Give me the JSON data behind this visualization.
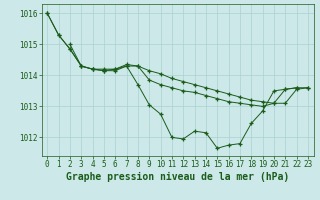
{
  "title": "Graphe pression niveau de la mer (hPa)",
  "background_color": "#cce8e8",
  "grid_color": "#aad0d0",
  "line_color": "#1a5c1a",
  "xlim": [
    -0.5,
    23.5
  ],
  "ylim": [
    1011.4,
    1016.3
  ],
  "yticks": [
    1012,
    1013,
    1014,
    1015,
    1016
  ],
  "xticks": [
    0,
    1,
    2,
    3,
    4,
    5,
    6,
    7,
    8,
    9,
    10,
    11,
    12,
    13,
    14,
    15,
    16,
    17,
    18,
    19,
    20,
    21,
    22,
    23
  ],
  "title_fontsize": 7,
  "tick_fontsize": 5.5,
  "line1": [
    1016.0,
    1015.3,
    1014.85,
    1014.3,
    1014.2,
    1014.2,
    1014.2,
    1014.3,
    1013.7,
    1013.05,
    1012.75,
    1012.0,
    1011.95,
    1012.2,
    1012.15,
    1011.65,
    1011.75,
    1011.8,
    1012.45,
    1012.85,
    1013.5,
    1013.55,
    1013.6,
    null
  ],
  "line2": [
    1016.0,
    1015.3,
    1014.85,
    1014.3,
    1014.2,
    1014.15,
    1014.2,
    1014.35,
    1014.3,
    1014.15,
    1014.05,
    1013.9,
    1013.8,
    1013.7,
    1013.6,
    1013.5,
    1013.4,
    1013.3,
    1013.2,
    1013.15,
    1013.1,
    1013.1,
    1013.55,
    1013.6
  ],
  "line3": [
    null,
    null,
    1015.0,
    1014.3,
    1014.2,
    1014.15,
    1014.15,
    1014.3,
    1014.3,
    1013.85,
    1013.7,
    1013.6,
    1013.5,
    1013.45,
    1013.35,
    1013.25,
    1013.15,
    1013.1,
    1013.05,
    1013.0,
    1013.1,
    1013.55,
    1013.6,
    1013.6
  ]
}
